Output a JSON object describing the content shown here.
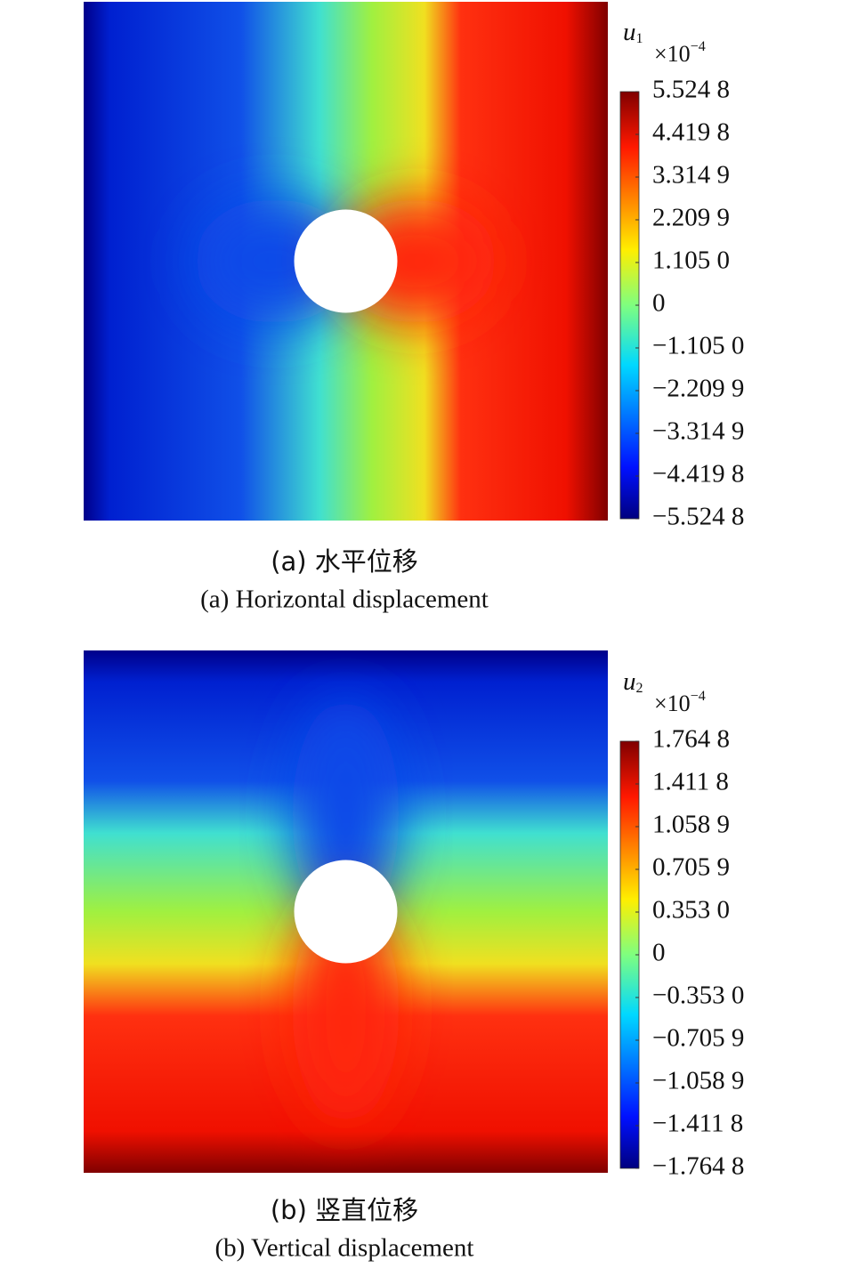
{
  "chart_data": [
    {
      "type": "field",
      "colormap": "jet",
      "field": "horizontal",
      "colorbar_label": {
        "symbol": "u",
        "subscript": "1"
      },
      "scale": {
        "base": "×10",
        "exponent": "−4"
      },
      "clim": [
        -5.5248,
        5.5248
      ],
      "cticks": [
        {
          "value": 5.5248,
          "label": "5.524 8"
        },
        {
          "value": 4.4198,
          "label": "4.419 8"
        },
        {
          "value": 3.3149,
          "label": "3.314 9"
        },
        {
          "value": 2.2099,
          "label": "2.209 9"
        },
        {
          "value": 1.105,
          "label": "1.105 0"
        },
        0,
        {
          "value": -1.105,
          "label": "−1.105 0"
        },
        {
          "value": -2.2099,
          "label": "−2.209 9"
        },
        {
          "value": -3.3149,
          "label": "−3.314 9"
        },
        {
          "value": -4.4198,
          "label": "−4.419 8"
        },
        {
          "value": -5.5248,
          "label": "−5.524 8"
        }
      ],
      "caption_cn": "(a) 水平位移",
      "caption_en": "(a) Horizontal displacement"
    },
    {
      "type": "field",
      "colormap": "jet",
      "field": "vertical",
      "colorbar_label": {
        "symbol": "u",
        "subscript": "2"
      },
      "scale": {
        "base": "×10",
        "exponent": "−4"
      },
      "clim": [
        -1.7648,
        1.7648
      ],
      "cticks": [
        {
          "value": 1.7648,
          "label": "1.764 8"
        },
        {
          "value": 1.4118,
          "label": "1.411 8"
        },
        {
          "value": 1.0589,
          "label": "1.058 9"
        },
        {
          "value": 0.7059,
          "label": "0.705 9"
        },
        {
          "value": 0.353,
          "label": "0.353 0"
        },
        0,
        {
          "value": -0.353,
          "label": "−0.353 0"
        },
        {
          "value": -0.7059,
          "label": "−0.705 9"
        },
        {
          "value": -1.0589,
          "label": "−1.058 9"
        },
        {
          "value": -1.4118,
          "label": "−1.411 8"
        },
        {
          "value": -1.7648,
          "label": "−1.764 8"
        }
      ],
      "caption_cn": "(b) 竖直位移",
      "caption_en": "(b) Vertical displacement"
    }
  ]
}
